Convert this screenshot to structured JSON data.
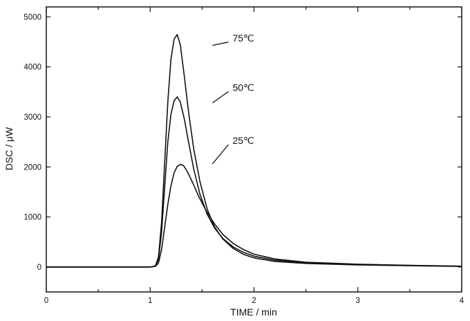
{
  "chart_data": {
    "type": "line",
    "xlabel": "TIME  / min",
    "ylabel": "DSC  / μW",
    "xlim": [
      0,
      4
    ],
    "ylim": [
      -500,
      5200
    ],
    "x_ticks": [
      0,
      1,
      2,
      3,
      4
    ],
    "x_minor_ticks": [
      0.5,
      1.5,
      2.5,
      3.5
    ],
    "y_ticks": [
      0,
      1000,
      2000,
      3000,
      4000,
      5000
    ],
    "grid": false,
    "legend": "none",
    "series": [
      {
        "name": "75℃",
        "anchor": [
          1.6,
          4430
        ],
        "points": [
          [
            0,
            0
          ],
          [
            1.0,
            0
          ],
          [
            1.05,
            20
          ],
          [
            1.08,
            200
          ],
          [
            1.11,
            900
          ],
          [
            1.14,
            2100
          ],
          [
            1.17,
            3300
          ],
          [
            1.2,
            4150
          ],
          [
            1.23,
            4550
          ],
          [
            1.26,
            4650
          ],
          [
            1.29,
            4450
          ],
          [
            1.33,
            3800
          ],
          [
            1.37,
            3100
          ],
          [
            1.42,
            2350
          ],
          [
            1.48,
            1700
          ],
          [
            1.55,
            1150
          ],
          [
            1.62,
            800
          ],
          [
            1.7,
            560
          ],
          [
            1.8,
            370
          ],
          [
            1.9,
            250
          ],
          [
            2.0,
            180
          ],
          [
            2.2,
            110
          ],
          [
            2.5,
            70
          ],
          [
            3.0,
            40
          ],
          [
            3.5,
            25
          ],
          [
            4.0,
            10
          ]
        ]
      },
      {
        "name": "50℃",
        "anchor": [
          1.6,
          3280
        ],
        "points": [
          [
            0,
            0
          ],
          [
            1.0,
            0
          ],
          [
            1.05,
            15
          ],
          [
            1.08,
            150
          ],
          [
            1.11,
            700
          ],
          [
            1.14,
            1600
          ],
          [
            1.17,
            2500
          ],
          [
            1.2,
            3050
          ],
          [
            1.23,
            3320
          ],
          [
            1.26,
            3400
          ],
          [
            1.29,
            3300
          ],
          [
            1.33,
            2950
          ],
          [
            1.37,
            2500
          ],
          [
            1.42,
            1950
          ],
          [
            1.48,
            1450
          ],
          [
            1.55,
            1050
          ],
          [
            1.62,
            780
          ],
          [
            1.7,
            570
          ],
          [
            1.8,
            400
          ],
          [
            1.9,
            290
          ],
          [
            2.0,
            215
          ],
          [
            2.2,
            135
          ],
          [
            2.5,
            85
          ],
          [
            3.0,
            50
          ],
          [
            3.5,
            30
          ],
          [
            4.0,
            15
          ]
        ]
      },
      {
        "name": "25℃",
        "anchor": [
          1.6,
          2060
        ],
        "points": [
          [
            0,
            0
          ],
          [
            1.0,
            0
          ],
          [
            1.05,
            10
          ],
          [
            1.08,
            80
          ],
          [
            1.11,
            350
          ],
          [
            1.14,
            800
          ],
          [
            1.17,
            1250
          ],
          [
            1.2,
            1620
          ],
          [
            1.23,
            1880
          ],
          [
            1.26,
            2010
          ],
          [
            1.29,
            2050
          ],
          [
            1.32,
            2030
          ],
          [
            1.36,
            1900
          ],
          [
            1.41,
            1680
          ],
          [
            1.47,
            1400
          ],
          [
            1.54,
            1120
          ],
          [
            1.62,
            860
          ],
          [
            1.7,
            650
          ],
          [
            1.8,
            470
          ],
          [
            1.9,
            345
          ],
          [
            2.0,
            255
          ],
          [
            2.2,
            160
          ],
          [
            2.5,
            95
          ],
          [
            3.0,
            55
          ],
          [
            3.5,
            32
          ],
          [
            4.0,
            15
          ]
        ]
      }
    ]
  }
}
